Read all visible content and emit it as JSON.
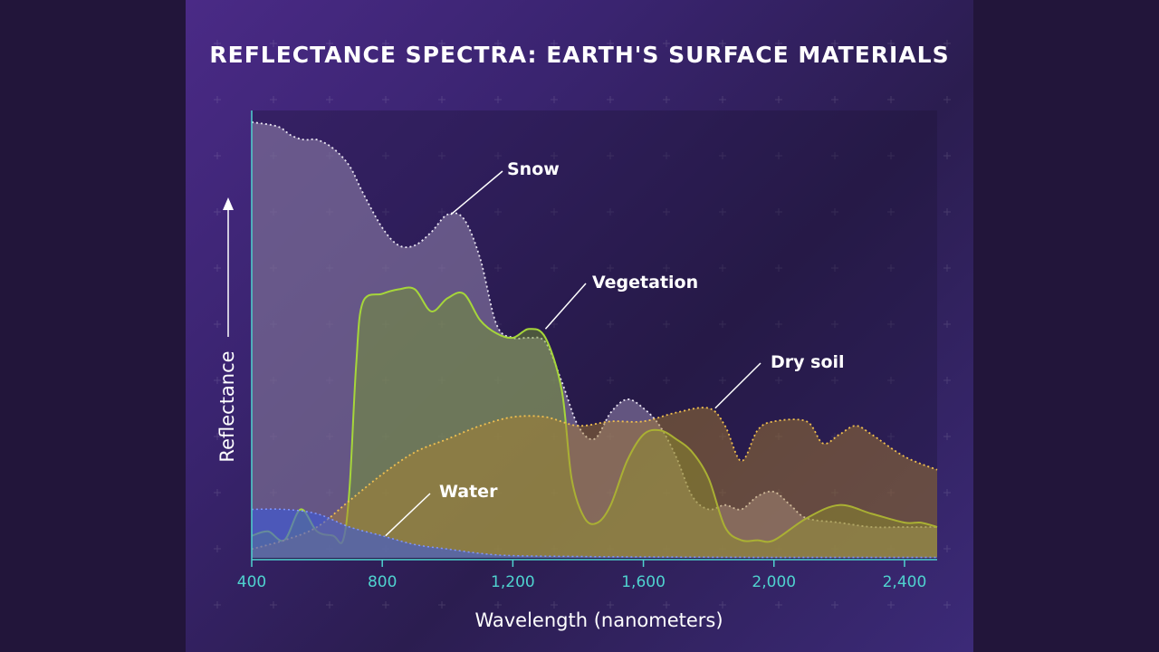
{
  "colors": {
    "panel_bg": "#3a2470",
    "axis": "#4fd3cf",
    "snow": "#8c7fa8",
    "vegetation": "#8fb830",
    "dry_soil": "#9a7840",
    "water": "#3a5ad8"
  },
  "chart_data": {
    "type": "area",
    "title": "REFLECTANCE SPECTRA: EARTH'S SURFACE MATERIALS",
    "xlabel": "Wavelength (nanometers)",
    "ylabel": "Reflectance",
    "xlim": [
      400,
      2500
    ],
    "ylim": [
      0,
      1
    ],
    "xticks": [
      400,
      800,
      1200,
      1600,
      2000,
      2400
    ],
    "xtick_labels": [
      "400",
      "800",
      "1,200",
      "1,600",
      "2,000",
      "2,400"
    ],
    "yticks_shown": false,
    "series": [
      {
        "name": "Snow",
        "label": "Snow",
        "color": "#8c7fa8",
        "x": [
          400,
          480,
          520,
          560,
          600,
          650,
          700,
          740,
          800,
          850,
          900,
          950,
          1000,
          1050,
          1100,
          1150,
          1200,
          1250,
          1300,
          1350,
          1400,
          1450,
          1500,
          1550,
          1600,
          1650,
          1700,
          1750,
          1800,
          1850,
          1900,
          1950,
          2000,
          2050,
          2100,
          2200,
          2300,
          2400,
          2500
        ],
        "y": [
          0.99,
          0.98,
          0.96,
          0.95,
          0.95,
          0.93,
          0.89,
          0.83,
          0.75,
          0.71,
          0.71,
          0.74,
          0.78,
          0.77,
          0.68,
          0.53,
          0.5,
          0.5,
          0.49,
          0.4,
          0.3,
          0.27,
          0.33,
          0.36,
          0.34,
          0.3,
          0.23,
          0.14,
          0.11,
          0.12,
          0.11,
          0.14,
          0.15,
          0.12,
          0.09,
          0.08,
          0.07,
          0.07,
          0.07
        ]
      },
      {
        "name": "Vegetation",
        "label": "Vegetation",
        "color": "#8fb830",
        "x": [
          400,
          450,
          500,
          550,
          600,
          650,
          680,
          700,
          720,
          740,
          800,
          850,
          900,
          950,
          1000,
          1050,
          1100,
          1150,
          1200,
          1250,
          1300,
          1350,
          1380,
          1420,
          1460,
          1500,
          1550,
          1600,
          1650,
          1700,
          1750,
          1800,
          1850,
          1900,
          1950,
          2000,
          2100,
          2200,
          2300,
          2400,
          2450,
          2500
        ],
        "y": [
          0.05,
          0.06,
          0.04,
          0.11,
          0.06,
          0.05,
          0.04,
          0.16,
          0.44,
          0.58,
          0.6,
          0.61,
          0.61,
          0.56,
          0.59,
          0.6,
          0.54,
          0.51,
          0.5,
          0.52,
          0.5,
          0.38,
          0.18,
          0.09,
          0.08,
          0.12,
          0.22,
          0.28,
          0.29,
          0.27,
          0.24,
          0.18,
          0.07,
          0.04,
          0.04,
          0.04,
          0.09,
          0.12,
          0.1,
          0.08,
          0.08,
          0.07
        ]
      },
      {
        "name": "Dry soil",
        "label": "Dry soil",
        "color": "#9a7840",
        "x": [
          400,
          500,
          600,
          700,
          800,
          900,
          1000,
          1100,
          1200,
          1300,
          1400,
          1500,
          1600,
          1700,
          1800,
          1850,
          1900,
          1950,
          2000,
          2100,
          2150,
          2200,
          2250,
          2300,
          2400,
          2500
        ],
        "y": [
          0.02,
          0.04,
          0.07,
          0.13,
          0.19,
          0.24,
          0.27,
          0.3,
          0.32,
          0.32,
          0.3,
          0.31,
          0.31,
          0.33,
          0.34,
          0.3,
          0.22,
          0.29,
          0.31,
          0.31,
          0.26,
          0.28,
          0.3,
          0.28,
          0.23,
          0.2
        ]
      },
      {
        "name": "Water",
        "label": "Water",
        "color": "#3a5ad8",
        "x": [
          400,
          500,
          600,
          700,
          800,
          900,
          1000,
          1100,
          1200,
          1400,
          1600,
          2000,
          2500
        ],
        "y": [
          0.11,
          0.11,
          0.1,
          0.07,
          0.05,
          0.03,
          0.02,
          0.01,
          0.005,
          0.003,
          0.002,
          0.001,
          0.001
        ]
      }
    ]
  }
}
